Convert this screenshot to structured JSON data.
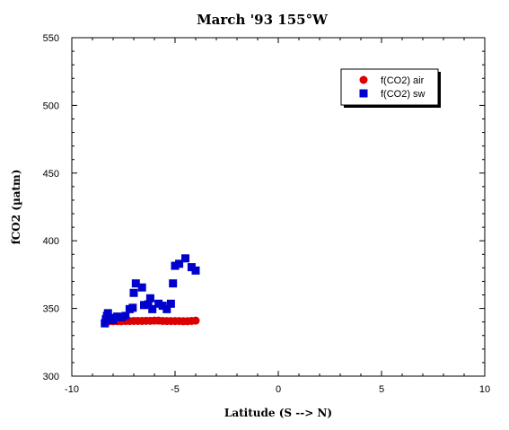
{
  "chart_data": {
    "type": "scatter",
    "title": "March '93 155°W",
    "xlabel": "Latitude (S --> N)",
    "ylabel": "fCO2 (µatm)",
    "xlim": [
      -10,
      10
    ],
    "ylim": [
      300,
      550
    ],
    "xticks": [
      -10,
      -5,
      0,
      5,
      10
    ],
    "yticks": [
      300,
      350,
      400,
      450,
      500,
      550
    ],
    "x_minor_step": 1,
    "y_minor_step": 10,
    "grid": false,
    "legend_position": "top-right",
    "series": [
      {
        "name": "f(CO2) air",
        "marker": "circle",
        "color": "#dd0000",
        "points": [
          [
            -8.4,
            340.5
          ],
          [
            -8.2,
            340.5
          ],
          [
            -8.0,
            340.6
          ],
          [
            -7.8,
            340.6
          ],
          [
            -7.6,
            340.6
          ],
          [
            -7.4,
            340.7
          ],
          [
            -7.2,
            340.7
          ],
          [
            -7.0,
            340.8
          ],
          [
            -6.8,
            340.8
          ],
          [
            -6.6,
            340.8
          ],
          [
            -6.4,
            340.9
          ],
          [
            -6.2,
            340.9
          ],
          [
            -6.0,
            341.0
          ],
          [
            -5.8,
            341.0
          ],
          [
            -5.6,
            340.8
          ],
          [
            -5.4,
            340.7
          ],
          [
            -5.2,
            340.7
          ],
          [
            -5.0,
            340.7
          ],
          [
            -4.8,
            340.7
          ],
          [
            -4.6,
            340.6
          ],
          [
            -4.4,
            340.6
          ],
          [
            -4.2,
            340.8
          ],
          [
            -4.0,
            341.0
          ]
        ]
      },
      {
        "name": "f(CO2) sw",
        "marker": "square",
        "color": "#0000cc",
        "points": [
          [
            -8.4,
            339.0
          ],
          [
            -8.35,
            342.0
          ],
          [
            -8.3,
            344.5
          ],
          [
            -8.25,
            346.5
          ],
          [
            -8.1,
            343.0
          ],
          [
            -8.0,
            341.5
          ],
          [
            -7.8,
            344.0
          ],
          [
            -7.6,
            343.5
          ],
          [
            -7.4,
            344.5
          ],
          [
            -7.2,
            349.5
          ],
          [
            -7.05,
            350.5
          ],
          [
            -7.0,
            361.5
          ],
          [
            -6.9,
            368.5
          ],
          [
            -6.6,
            365.5
          ],
          [
            -6.5,
            352.5
          ],
          [
            -6.3,
            353.0
          ],
          [
            -6.2,
            357.5
          ],
          [
            -6.1,
            349.5
          ],
          [
            -5.8,
            353.5
          ],
          [
            -5.6,
            352.0
          ],
          [
            -5.4,
            349.5
          ],
          [
            -5.2,
            353.5
          ],
          [
            -5.1,
            368.5
          ],
          [
            -5.0,
            381.5
          ],
          [
            -4.8,
            383.0
          ],
          [
            -4.5,
            387.0
          ],
          [
            -4.2,
            380.5
          ],
          [
            -4.0,
            378.0
          ]
        ]
      }
    ]
  }
}
